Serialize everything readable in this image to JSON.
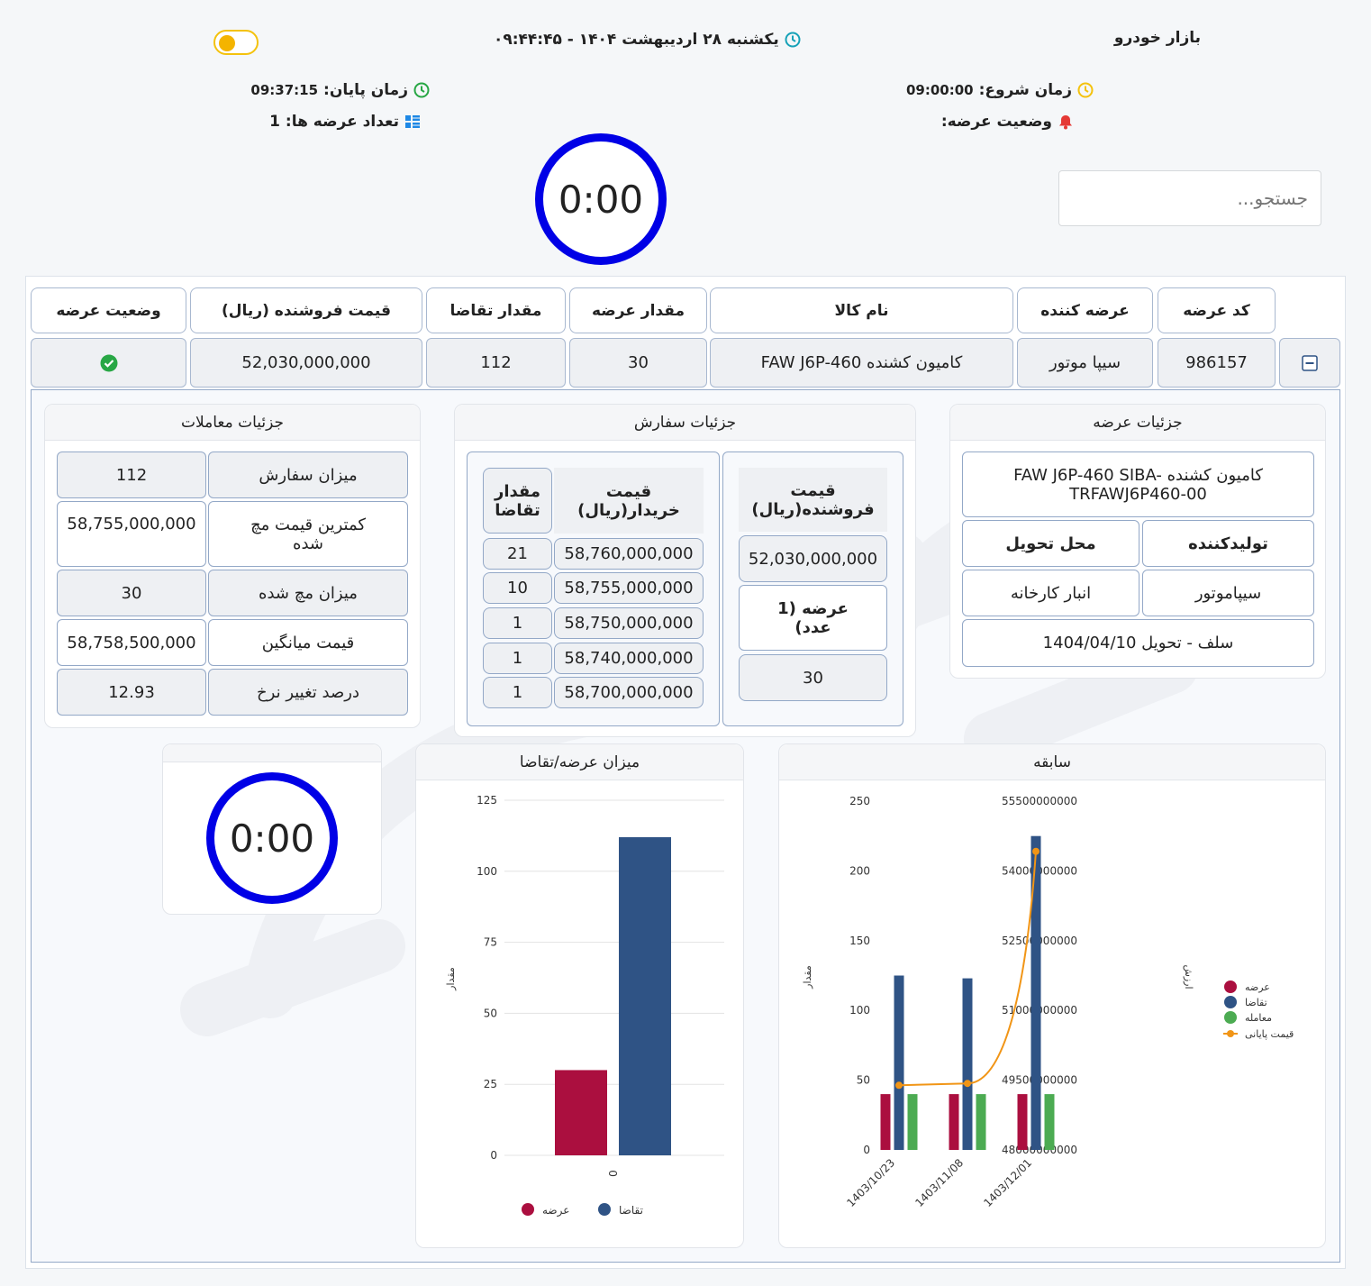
{
  "header": {
    "market_name": "بازار خودرو",
    "datetime": "یکشنبه ۲۸ اردیبهشت ۱۴۰۴ - ۰۹:۴۴:۴۵",
    "start_label": "زمان شروع:",
    "start_value": "09:00:00",
    "end_label": "زمان پایان:",
    "end_value": "09:37:15",
    "status_label": "وضعیت عرضه:",
    "count_label": "تعداد عرضه ها:",
    "count_value": "1",
    "timer": "0:00",
    "search_placeholder": "جستجو..."
  },
  "table": {
    "headers": {
      "code": "کد عرضه",
      "supplier": "عرضه کننده",
      "product": "نام کالا",
      "supply_qty": "مقدار عرضه",
      "demand_qty": "مقدار تقاضا",
      "seller_price": "قیمت فروشنده (ریال)",
      "status": "وضعیت عرضه"
    },
    "row": {
      "code": "986157",
      "supplier": "سیپا موتور",
      "product": "کامیون کشنده FAW J6P-460",
      "supply_qty": "30",
      "demand_qty": "112",
      "seller_price": "52,030,000,000"
    }
  },
  "offer_details": {
    "title": "جزئیات عرضه",
    "product_full": "کامیون کشنده FAW J6P-460 SIBA-TRFAWJ6P460-00",
    "producer_label": "تولیدکننده",
    "delivery_label": "محل تحویل",
    "producer": "سیپاموتور",
    "delivery": "انبار کارخانه",
    "settlement": "سلف - تحویل 1404/04/10"
  },
  "order_details": {
    "title": "جزئیات سفارش",
    "buyer_price_header": "قیمت خریدار(ریال)",
    "demand_qty_header": "مقدار تقاضا",
    "rows": [
      {
        "price": "58,760,000,000",
        "qty": "21"
      },
      {
        "price": "58,755,000,000",
        "qty": "10"
      },
      {
        "price": "58,750,000,000",
        "qty": "1"
      },
      {
        "price": "58,740,000,000",
        "qty": "1"
      },
      {
        "price": "58,700,000,000",
        "qty": "1"
      }
    ],
    "seller_price_header": "قیمت فروشنده(ریال)",
    "seller_price": "52,030,000,000",
    "offer_header": "عرضه (1 عدد)",
    "offer_qty": "30"
  },
  "trade_details": {
    "title": "جزئیات معاملات",
    "rows": [
      {
        "label": "میزان سفارش",
        "value": "112"
      },
      {
        "label": "کمترین قیمت مچ شده",
        "value": "58,755,000,000"
      },
      {
        "label": "میزان مچ شده",
        "value": "30"
      },
      {
        "label": "قیمت میانگین",
        "value": "58,758,500,000"
      },
      {
        "label": "درصد تغییر نرخ",
        "value": "12.93"
      }
    ]
  },
  "small_timer": "0:00",
  "colors": {
    "supply": "#ab0f3f",
    "demand": "#2f5385",
    "trade": "#4cab52",
    "final_price": "#f19516",
    "timer_ring": "#0000e6",
    "toggle": "#f4b400"
  },
  "chart_data": [
    {
      "type": "bar",
      "title": "میزان عرضه/تقاضا",
      "categories": [
        "0"
      ],
      "series": [
        {
          "name": "عرضه",
          "values": [
            30
          ]
        },
        {
          "name": "تقاضا",
          "values": [
            112
          ]
        }
      ],
      "ylim": [
        0,
        125
      ],
      "yticks": [
        0,
        25,
        50,
        75,
        100,
        125
      ],
      "ylabel": "مقدار",
      "legend": "bottom"
    },
    {
      "type": "bar",
      "title": "سابقه",
      "categories": [
        "1403/10/23",
        "1403/11/08",
        "1403/12/01"
      ],
      "series": [
        {
          "name": "عرضه",
          "values": [
            40,
            40,
            40
          ]
        },
        {
          "name": "تقاضا",
          "values": [
            125,
            123,
            225
          ]
        },
        {
          "name": "معامله",
          "values": [
            40,
            40,
            40
          ]
        },
        {
          "name": "قیمت پایانی",
          "type": "line",
          "axis": "right",
          "values": [
            49390000000,
            49430000000,
            54420000000
          ]
        }
      ],
      "ylim": [
        0,
        250
      ],
      "yticks": [
        0,
        50,
        100,
        150,
        200,
        250
      ],
      "y2lim": [
        48000000000,
        55500000000
      ],
      "y2ticks": [
        48000000000,
        49500000000,
        51000000000,
        52500000000,
        54000000000,
        55500000000
      ],
      "ylabel": "مقدار",
      "y2label": "ارزش",
      "legend": "right"
    }
  ]
}
